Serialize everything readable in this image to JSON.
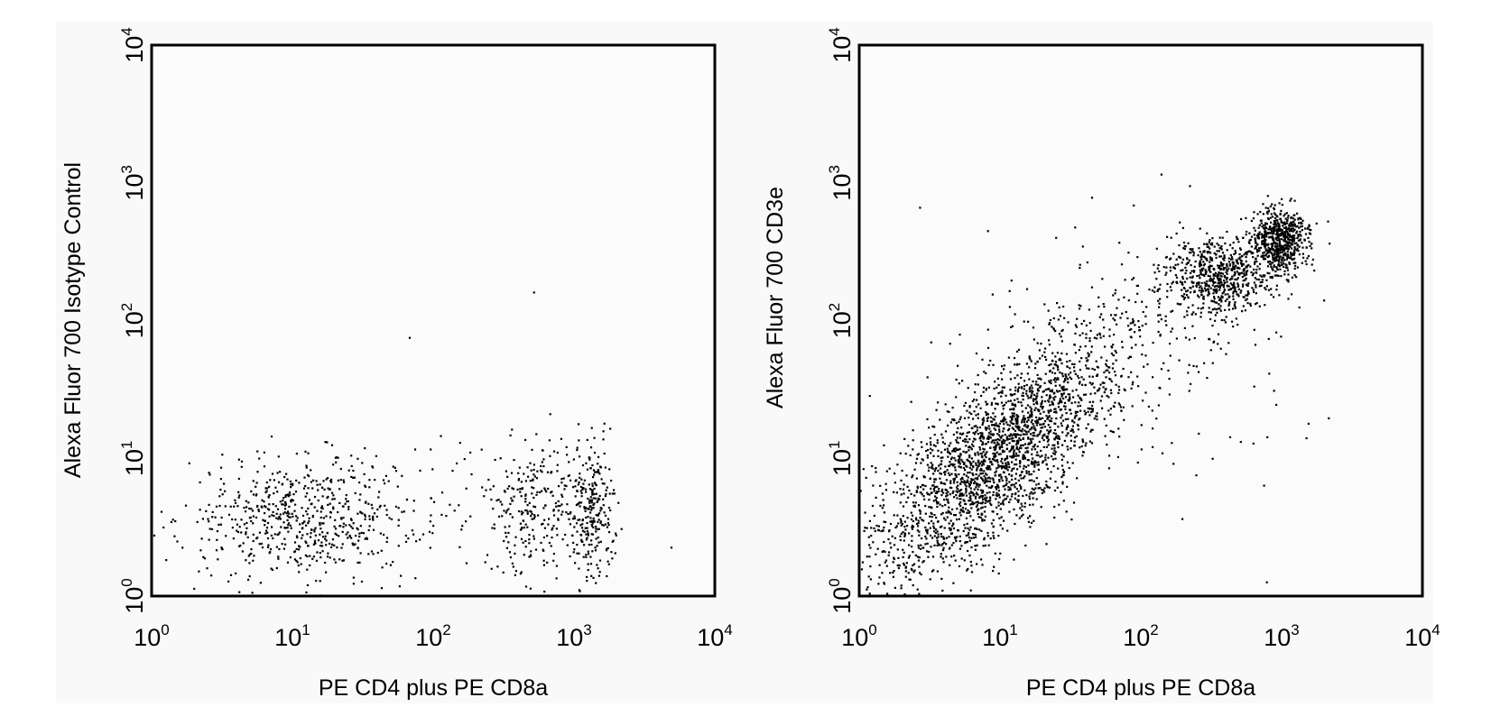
{
  "chart_data": [
    {
      "type": "scatter",
      "xlabel": "PE CD4 plus PE CD8a",
      "ylabel": "Alexa Fluor 700 Isotype Control",
      "xscale": "log",
      "yscale": "log",
      "xlim": [
        1,
        10000
      ],
      "ylim": [
        1,
        10000
      ],
      "x_ticks": [
        {
          "base": "10",
          "exp": "0"
        },
        {
          "base": "10",
          "exp": "1"
        },
        {
          "base": "10",
          "exp": "2"
        },
        {
          "base": "10",
          "exp": "3"
        },
        {
          "base": "10",
          "exp": "4"
        }
      ],
      "y_ticks": [
        {
          "base": "10",
          "exp": "0"
        },
        {
          "base": "10",
          "exp": "1"
        },
        {
          "base": "10",
          "exp": "2"
        },
        {
          "base": "10",
          "exp": "3"
        },
        {
          "base": "10",
          "exp": "4"
        }
      ],
      "grid": false,
      "marker_color": "#000000",
      "plot_background": "#fbfbfb",
      "populations": [
        {
          "center_x": 12,
          "center_y": 3.6,
          "spread_x_decades": 0.42,
          "spread_y_decades": 0.22,
          "count": 650
        },
        {
          "center_x": 550,
          "center_y": 4.5,
          "spread_x_decades": 0.16,
          "spread_y_decades": 0.25,
          "count": 230
        },
        {
          "center_x": 1350,
          "center_y": 4.0,
          "spread_x_decades": 0.08,
          "spread_y_decades": 0.25,
          "count": 260
        },
        {
          "center_x": 300,
          "center_y": 6,
          "spread_x_decades": 0.5,
          "spread_y_decades": 0.28,
          "count": 60
        }
      ],
      "outliers": [
        {
          "x": 520,
          "y": 160
        },
        {
          "x": 68,
          "y": 75
        }
      ]
    },
    {
      "type": "scatter",
      "xlabel": "PE CD4 plus PE CD8a",
      "ylabel": "Alexa Fluor 700 CD3e",
      "xscale": "log",
      "yscale": "log",
      "xlim": [
        1,
        10000
      ],
      "ylim": [
        1,
        10000
      ],
      "x_ticks": [
        {
          "base": "10",
          "exp": "0"
        },
        {
          "base": "10",
          "exp": "1"
        },
        {
          "base": "10",
          "exp": "2"
        },
        {
          "base": "10",
          "exp": "3"
        },
        {
          "base": "10",
          "exp": "4"
        }
      ],
      "y_ticks": [
        {
          "base": "10",
          "exp": "0"
        },
        {
          "base": "10",
          "exp": "1"
        },
        {
          "base": "10",
          "exp": "2"
        },
        {
          "base": "10",
          "exp": "3"
        },
        {
          "base": "10",
          "exp": "4"
        }
      ],
      "grid": false,
      "marker_color": "#000000",
      "plot_background": "#fbfbfb",
      "populations": [
        {
          "center_x": 9,
          "center_y": 10,
          "spread_x_decades": 0.45,
          "spread_y_decades": 0.45,
          "correlation": 0.75,
          "count": 2400
        },
        {
          "center_x": 350,
          "center_y": 210,
          "spread_x_decades": 0.18,
          "spread_y_decades": 0.15,
          "count": 650
        },
        {
          "center_x": 950,
          "center_y": 380,
          "spread_x_decades": 0.1,
          "spread_y_decades": 0.12,
          "count": 650
        },
        {
          "center_x": 80,
          "center_y": 60,
          "spread_x_decades": 0.6,
          "spread_y_decades": 0.45,
          "count": 220
        }
      ],
      "outliers": [
        {
          "x": 140,
          "y": 1150
        },
        {
          "x": 45,
          "y": 780
        },
        {
          "x": 2.7,
          "y": 660
        },
        {
          "x": 2000,
          "y": 140
        },
        {
          "x": 1500,
          "y": 14
        }
      ]
    }
  ]
}
